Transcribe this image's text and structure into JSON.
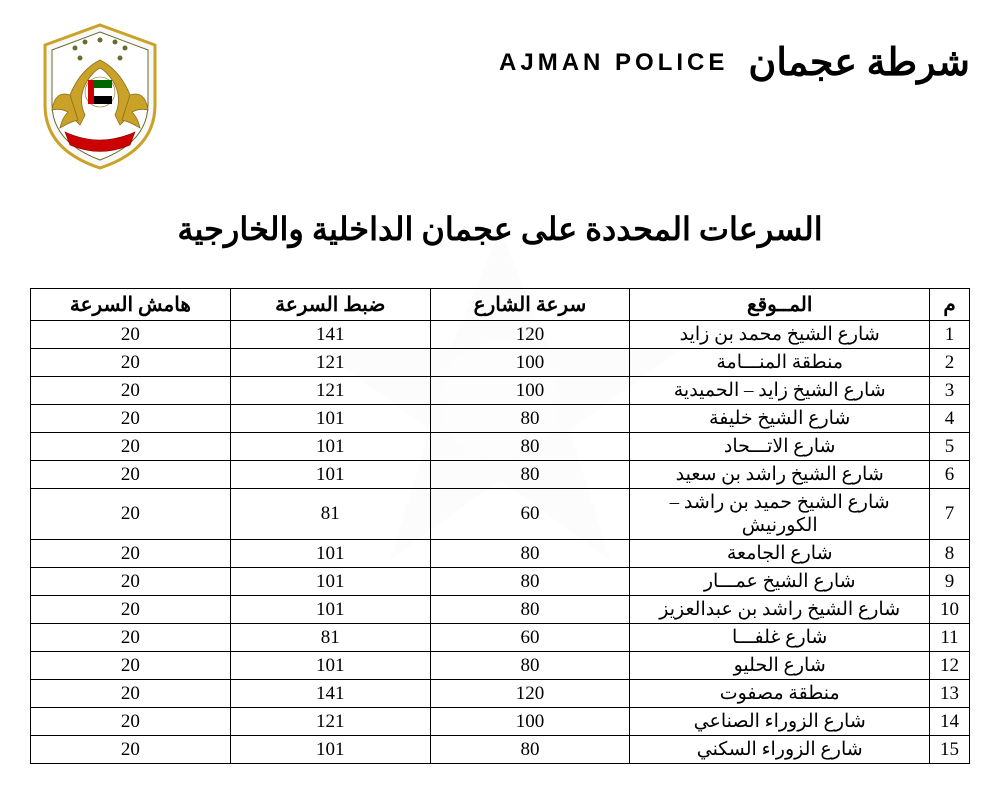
{
  "header": {
    "english": "AJMAN  POLICE",
    "arabic": "شرطة عجمان"
  },
  "title": "السرعات المحددة على عجمان الداخلية والخارجية",
  "table": {
    "columns": [
      "م",
      "المــوقع",
      "سرعة الشارع",
      "ضبط السرعة",
      "هامش السرعة"
    ],
    "rows": [
      [
        "1",
        "شارع الشيخ محمد بن زايد",
        "120",
        "141",
        "20"
      ],
      [
        "2",
        "منطقة المنـــامة",
        "100",
        "121",
        "20"
      ],
      [
        "3",
        "شارع الشيخ زايد – الحميدية",
        "100",
        "121",
        "20"
      ],
      [
        "4",
        "شارع الشيخ خليفة",
        "80",
        "101",
        "20"
      ],
      [
        "5",
        "شارع الاتـــحاد",
        "80",
        "101",
        "20"
      ],
      [
        "6",
        "شارع الشيخ راشد بن سعيد",
        "80",
        "101",
        "20"
      ],
      [
        "7",
        "شارع الشيخ حميد بن راشد – الكورنيش",
        "60",
        "81",
        "20"
      ],
      [
        "8",
        "شارع الجامعة",
        "80",
        "101",
        "20"
      ],
      [
        "9",
        "شارع الشيخ عمـــار",
        "80",
        "101",
        "20"
      ],
      [
        "10",
        "شارع الشيخ راشد بن عبدالعزيز",
        "80",
        "101",
        "20"
      ],
      [
        "11",
        "شارع غلفـــا",
        "60",
        "81",
        "20"
      ],
      [
        "12",
        "شارع الحليو",
        "80",
        "101",
        "20"
      ],
      [
        "13",
        "منطقة مصفوت",
        "120",
        "141",
        "20"
      ],
      [
        "14",
        "شارع الزوراء الصناعي",
        "100",
        "121",
        "20"
      ],
      [
        "15",
        "شارع الزوراء السكني",
        "80",
        "101",
        "20"
      ]
    ],
    "col_widths": [
      "40px",
      "300px",
      "200px",
      "200px",
      "200px"
    ],
    "border_color": "#000000",
    "header_fontsize": 20,
    "cell_fontsize": 19
  },
  "colors": {
    "background": "#ffffff",
    "text": "#000000",
    "logo_gold": "#c9a227",
    "logo_olive": "#6b6b2e",
    "flag_red": "#cc0000",
    "flag_green": "#006600",
    "flag_black": "#000000"
  }
}
